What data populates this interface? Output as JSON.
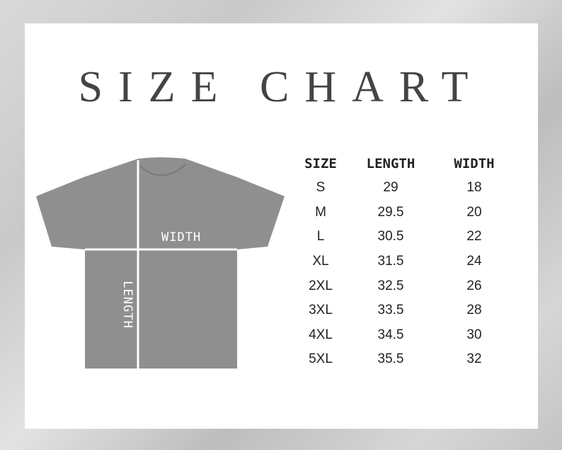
{
  "title": "SIZE CHART",
  "diagram": {
    "width_label": "WIDTH",
    "length_label": "LENGTH",
    "shirt_color": "#8f8f8f"
  },
  "table": {
    "headers": [
      "SIZE",
      "LENGTH",
      "WIDTH"
    ],
    "rows": [
      [
        "S",
        "29",
        "18"
      ],
      [
        "M",
        "29.5",
        "20"
      ],
      [
        "L",
        "30.5",
        "22"
      ],
      [
        "XL",
        "31.5",
        "24"
      ],
      [
        "2XL",
        "32.5",
        "26"
      ],
      [
        "3XL",
        "33.5",
        "28"
      ],
      [
        "4XL",
        "34.5",
        "30"
      ],
      [
        "5XL",
        "35.5",
        "32"
      ]
    ]
  }
}
